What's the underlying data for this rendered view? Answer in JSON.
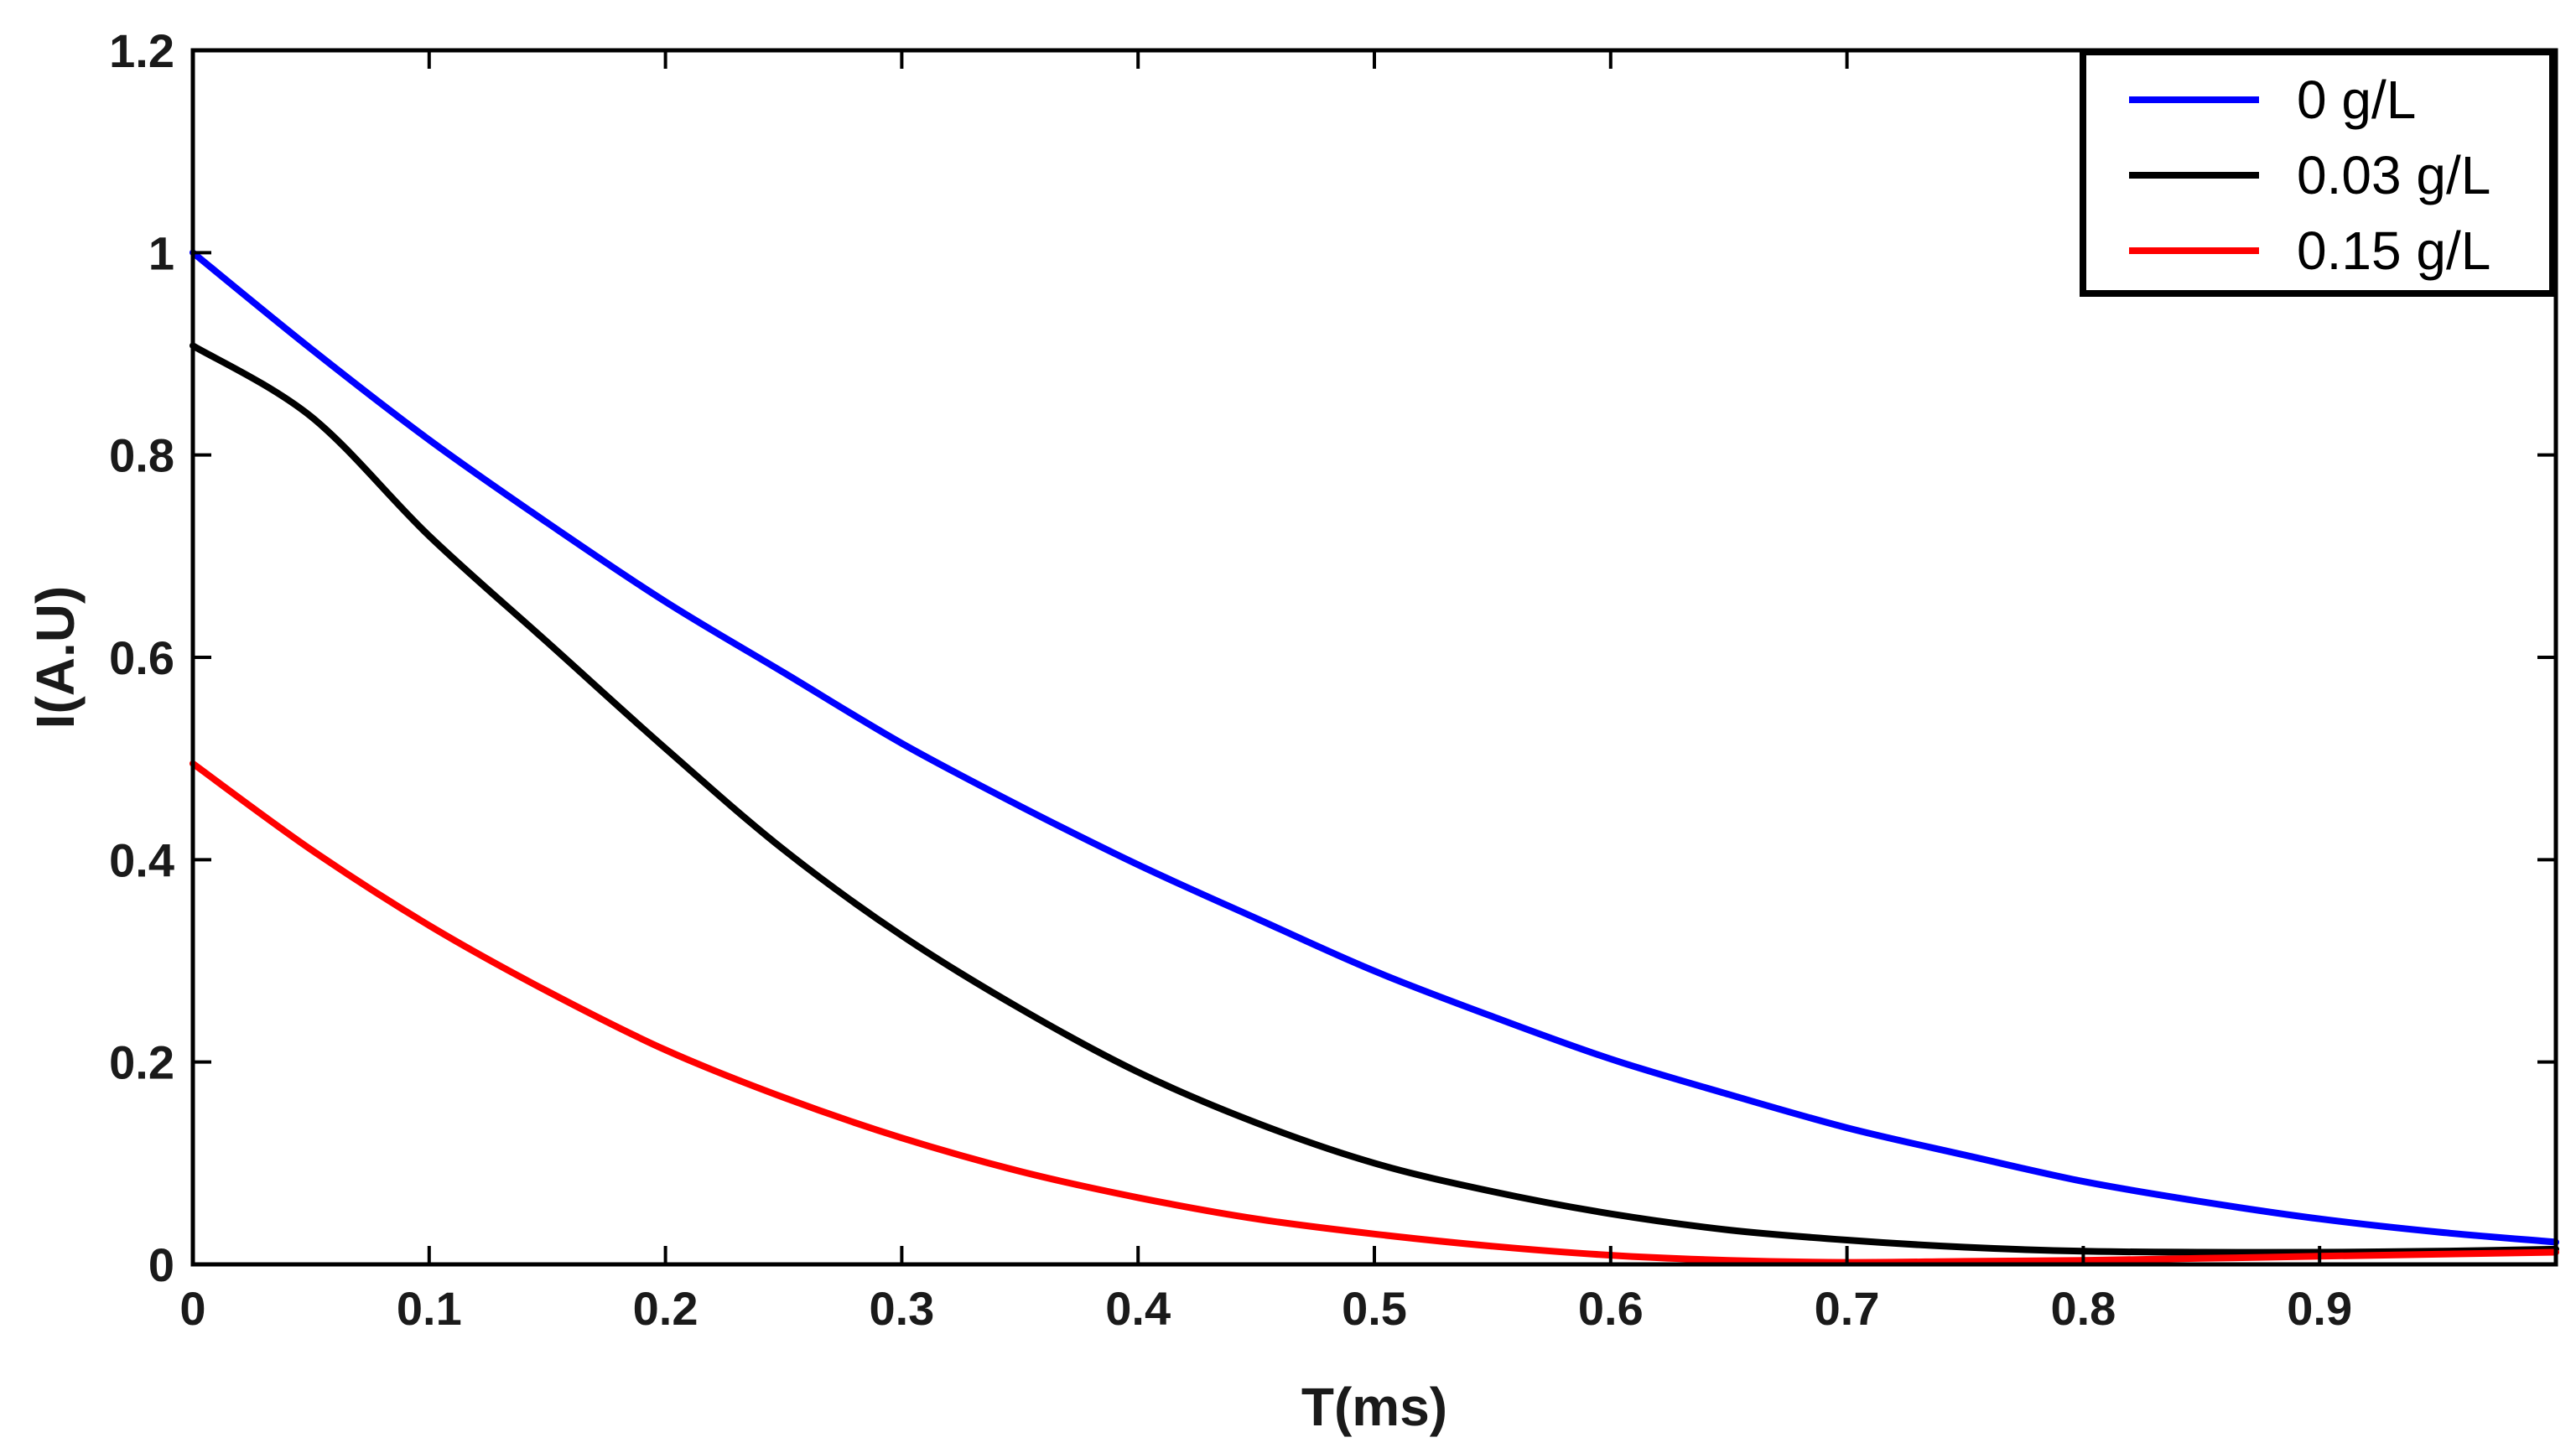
{
  "chart_data": {
    "type": "line",
    "title": "",
    "xlabel": "T(ms)",
    "ylabel": "I(A.U)",
    "xlim": [
      0,
      1
    ],
    "ylim": [
      0,
      1.2
    ],
    "grid": false,
    "legend_position": "top-right",
    "x_ticks": [
      0,
      0.1,
      0.2,
      0.3,
      0.4,
      0.5,
      0.6,
      0.7,
      0.8,
      0.9
    ],
    "x_tick_labels": [
      "0",
      "0.1",
      "0.2",
      "0.3",
      "0.4",
      "0.5",
      "0.6",
      "0.7",
      "0.8",
      "0.9"
    ],
    "y_ticks": [
      0,
      0.2,
      0.4,
      0.6,
      0.8,
      1,
      1.2
    ],
    "y_tick_labels": [
      "0",
      "0.2",
      "0.4",
      "0.6",
      "0.8",
      "1",
      "1.2"
    ],
    "x": [
      0,
      0.05,
      0.1,
      0.15,
      0.2,
      0.25,
      0.3,
      0.35,
      0.4,
      0.45,
      0.5,
      0.55,
      0.6,
      0.65,
      0.7,
      0.75,
      0.8,
      0.85,
      0.9,
      0.95,
      1.0
    ],
    "series": [
      {
        "name": "0 g/L",
        "color": "#0000ff",
        "values": [
          1.0,
          0.905,
          0.815,
          0.733,
          0.655,
          0.585,
          0.515,
          0.453,
          0.395,
          0.342,
          0.29,
          0.245,
          0.203,
          0.168,
          0.135,
          0.108,
          0.082,
          0.062,
          0.045,
          0.032,
          0.022
        ]
      },
      {
        "name": "0.03 g/L",
        "color": "#000000",
        "values": [
          0.908,
          0.838,
          0.72,
          0.615,
          0.51,
          0.41,
          0.325,
          0.253,
          0.19,
          0.14,
          0.1,
          0.072,
          0.05,
          0.034,
          0.024,
          0.017,
          0.013,
          0.012,
          0.012,
          0.013,
          0.015
        ]
      },
      {
        "name": "0.15 g/L",
        "color": "#ff0000",
        "values": [
          0.495,
          0.41,
          0.335,
          0.27,
          0.212,
          0.165,
          0.125,
          0.092,
          0.066,
          0.045,
          0.03,
          0.018,
          0.009,
          0.004,
          0.002,
          0.003,
          0.004,
          0.006,
          0.008,
          0.01,
          0.012
        ]
      }
    ]
  }
}
